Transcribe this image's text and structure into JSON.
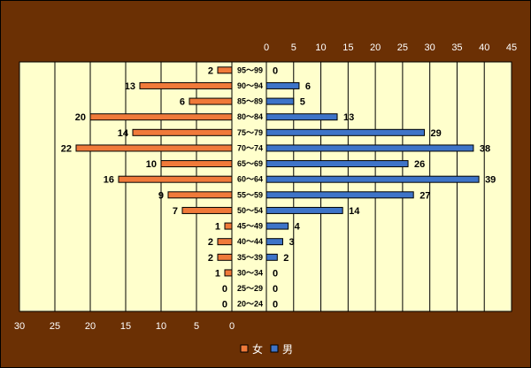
{
  "chart_data": {
    "type": "bar",
    "orientation": "horizontal-population-pyramid",
    "categories": [
      "95～99",
      "90～94",
      "85～89",
      "80～84",
      "75～79",
      "70～74",
      "65～69",
      "60～64",
      "55～59",
      "50～54",
      "45～49",
      "40～44",
      "35～39",
      "30～34",
      "25～29",
      "20～24"
    ],
    "series": [
      {
        "name": "女",
        "color": "#f07a3a",
        "values": [
          2,
          13,
          6,
          20,
          14,
          22,
          10,
          16,
          9,
          7,
          1,
          2,
          2,
          1,
          0,
          0
        ]
      },
      {
        "name": "男",
        "color": "#3e74c8",
        "values": [
          0,
          6,
          5,
          13,
          29,
          38,
          26,
          39,
          27,
          14,
          4,
          3,
          2,
          0,
          0,
          0
        ]
      }
    ],
    "left_axis": {
      "ticks": [
        "30",
        "25",
        "20",
        "15",
        "10",
        "5",
        "0"
      ],
      "range": [
        0,
        30
      ]
    },
    "right_axis": {
      "ticks": [
        "0",
        "5",
        "10",
        "15",
        "20",
        "25",
        "30",
        "35",
        "40",
        "45"
      ],
      "range": [
        0,
        45
      ]
    },
    "legend": {
      "placement": "bottom-center",
      "items": [
        "女",
        "男"
      ]
    },
    "grid": true,
    "plot_background": "#ffffcc"
  }
}
